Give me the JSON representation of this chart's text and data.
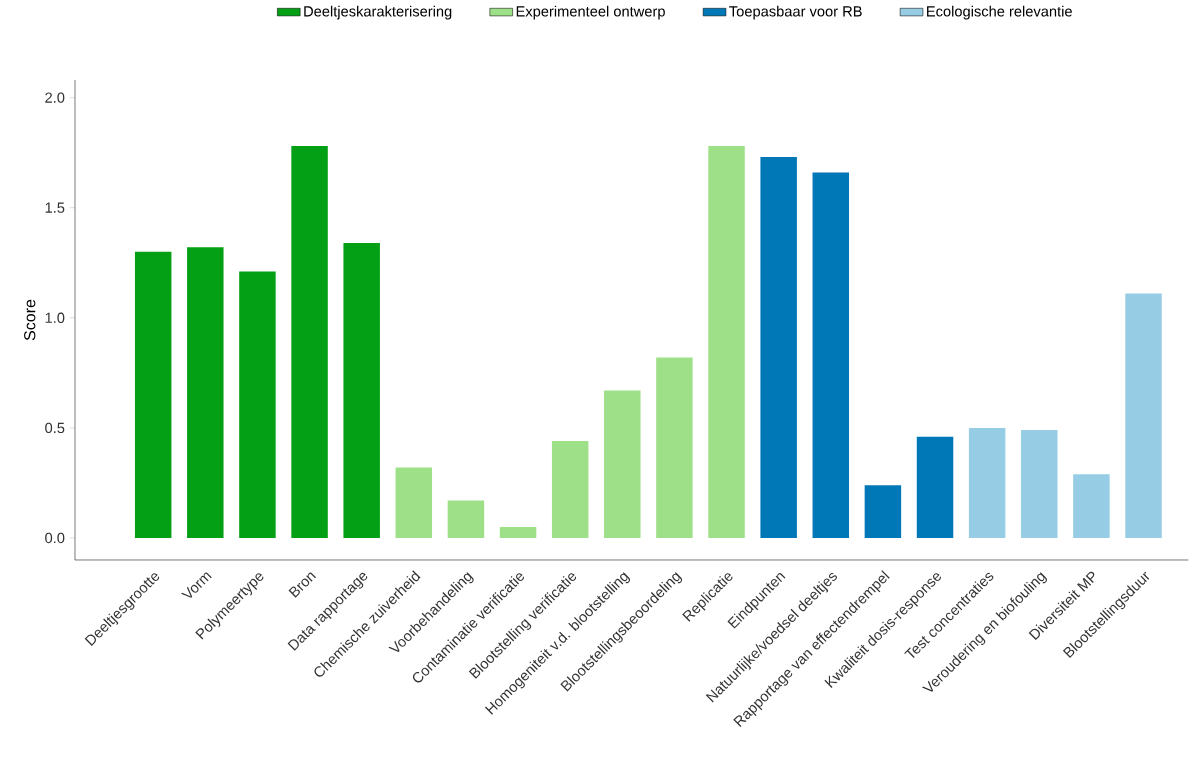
{
  "chart_data": {
    "type": "bar",
    "ylabel": "Score",
    "categories": [
      "Deeltjesgrootte",
      "Vorm",
      "Polymeertype",
      "Bron",
      "Data rapportage",
      "Chemische zuiverheid",
      "Voorbehandeling",
      "Contaminatie verificatie",
      "Blootstelling  verificatie",
      "Homogeniteit v.d. blootstelling",
      "Blootstellingsbeoordeling",
      "Replicatie",
      "Eindpunten",
      "Natuurlijke/voedsel deeltjes",
      "Rapportage van effectendrempel",
      "Kwaliteit dosis-response",
      "Test concentraties",
      "Veroudering en biofouling",
      "Diversiteit MP",
      "Blootstellingsduur"
    ],
    "series": [
      {
        "name": "Deeltjeskarakterisering",
        "color": "#03a015",
        "values": [
          1.3,
          1.32,
          1.21,
          1.78,
          1.34,
          null,
          null,
          null,
          null,
          null,
          null,
          null,
          null,
          null,
          null,
          null,
          null,
          null,
          null,
          null
        ]
      },
      {
        "name": "Experimenteel ontwerp",
        "color": "#9ee087",
        "values": [
          null,
          null,
          null,
          null,
          null,
          0.32,
          0.17,
          0.05,
          0.44,
          0.67,
          0.82,
          1.78,
          null,
          null,
          null,
          null,
          null,
          null,
          null,
          null
        ]
      },
      {
        "name": "Toepasbaar voor RB",
        "color": "#0077b6",
        "values": [
          null,
          null,
          null,
          null,
          null,
          null,
          null,
          null,
          null,
          null,
          null,
          null,
          1.73,
          1.66,
          0.24,
          0.46,
          null,
          null,
          null,
          null
        ]
      },
      {
        "name": "Ecologische relevantie",
        "color": "#96cde4",
        "values": [
          null,
          null,
          null,
          null,
          null,
          null,
          null,
          null,
          null,
          null,
          null,
          null,
          null,
          null,
          null,
          null,
          0.5,
          0.49,
          0.29,
          1.11
        ]
      }
    ],
    "ylim": [
      -0.1,
      2.08
    ],
    "yticks": [
      {
        "value": 0,
        "label": "0.0"
      },
      0.5,
      {
        "value": 1,
        "label": "1.0"
      },
      1.5,
      {
        "value": 2,
        "label": "2.0"
      }
    ],
    "legend": "top",
    "grid": false
  }
}
